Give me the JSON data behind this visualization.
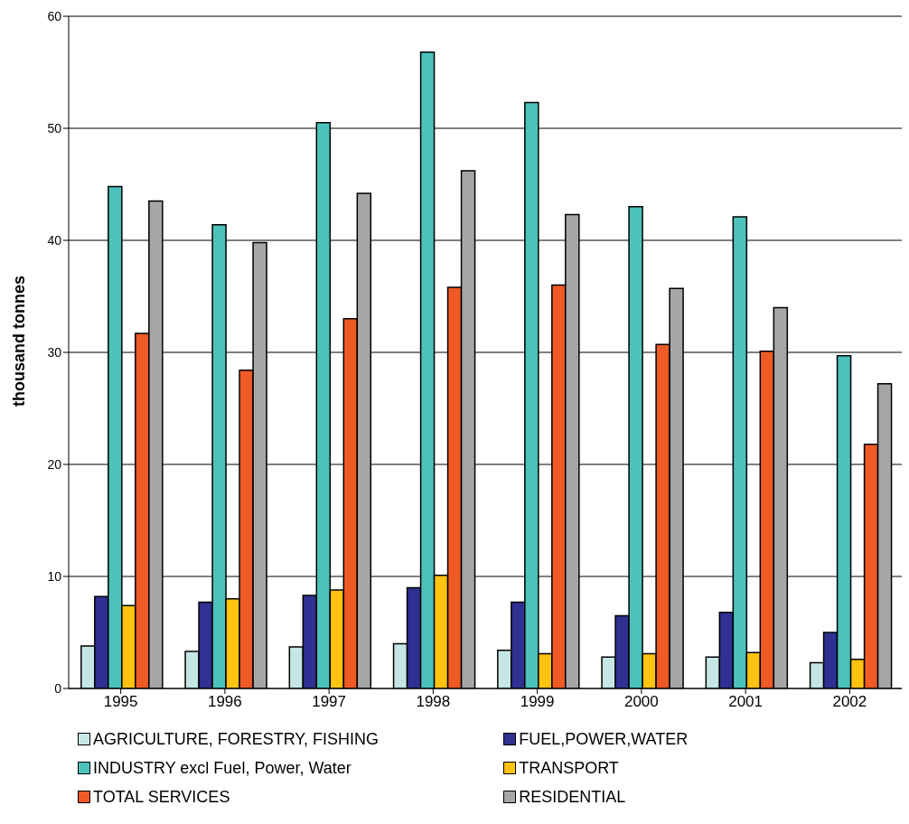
{
  "chart_data": {
    "type": "bar",
    "ylabel": "thousand tonnes",
    "categories": [
      "1995",
      "1996",
      "1997",
      "1998",
      "1999",
      "2000",
      "2001",
      "2002"
    ],
    "series": [
      {
        "name": "AGRICULTURE, FORESTRY, FISHING",
        "color": "#c6e6e6",
        "values": [
          3.8,
          3.3,
          3.7,
          4.0,
          3.4,
          2.8,
          2.8,
          2.3
        ]
      },
      {
        "name": "FUEL,POWER,WATER",
        "color": "#2e3192",
        "values": [
          8.2,
          7.7,
          8.3,
          9.0,
          7.7,
          6.5,
          6.8,
          5.0
        ]
      },
      {
        "name": "INDUSTRY excl Fuel, Power, Water",
        "color": "#4cc2bc",
        "values": [
          44.8,
          41.4,
          50.5,
          56.8,
          52.3,
          43.0,
          42.1,
          29.7
        ]
      },
      {
        "name": "TRANSPORT",
        "color": "#ffc20e",
        "values": [
          7.4,
          8.0,
          8.8,
          10.1,
          3.1,
          3.1,
          3.2,
          2.6
        ]
      },
      {
        "name": "TOTAL SERVICES",
        "color": "#f05a24",
        "values": [
          31.7,
          28.4,
          33.0,
          35.8,
          36.0,
          30.7,
          30.1,
          21.8
        ]
      },
      {
        "name": "RESIDENTIAL",
        "color": "#a6a6a6",
        "values": [
          43.5,
          39.8,
          44.2,
          46.2,
          42.3,
          35.7,
          34.0,
          27.2
        ]
      }
    ],
    "ylim": [
      0,
      60
    ],
    "yticks": [
      0,
      10,
      20,
      30,
      40,
      50,
      60
    ],
    "grid": "y",
    "legend": "bottom"
  }
}
